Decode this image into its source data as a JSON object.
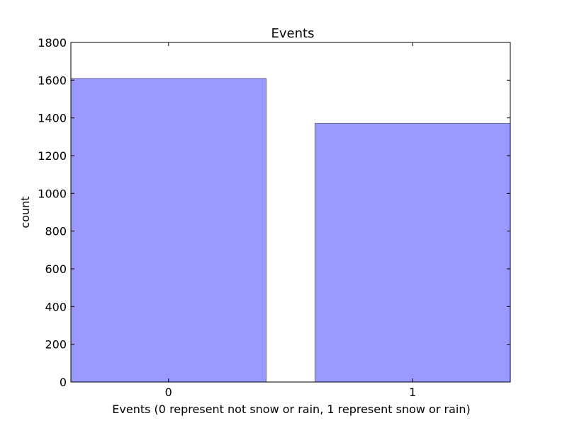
{
  "chart_data": {
    "type": "bar",
    "title": "Events",
    "xlabel": "Events (0 represent not snow or rain, 1 represent snow or rain)",
    "ylabel": "count",
    "categories": [
      "0",
      "1"
    ],
    "values": [
      1609,
      1371
    ],
    "ylim": [
      0,
      1800
    ],
    "yticks": [
      "0",
      "200",
      "400",
      "600",
      "800",
      "1000",
      "1200",
      "1400",
      "1600",
      "1800"
    ],
    "grid": false,
    "legend": "none",
    "colors": {
      "bar_fill": "#9999ff",
      "bar_stroke": "#6b6b8f",
      "axis": "#000000",
      "background": "#ffffff"
    }
  }
}
